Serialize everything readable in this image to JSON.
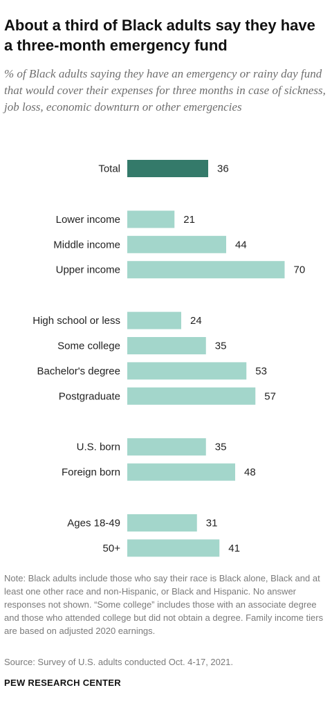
{
  "title": "About a third of Black adults say they have a three-month emergency fund",
  "subtitle": "% of Black adults saying they have an emergency or rainy day fund that would cover their expenses for three months in case of sickness, job loss, economic downturn or other emergencies",
  "note": "Note: Black adults include those who say their race is Black alone, Black and at least one other race and non-Hispanic, or Black and Hispanic. No answer responses not shown. “Some college” includes those with an associate degree and those who attended college but did not obtain a degree. Family income tiers are based on adjusted 2020 earnings.",
  "source": "Source: Survey of U.S. adults conducted Oct. 4-17, 2021.",
  "brand": "PEW RESEARCH CENTER",
  "colors": {
    "total": "#347a6a",
    "group": "#a3d6cb"
  },
  "chart_data": {
    "type": "bar",
    "orientation": "horizontal",
    "xlim": [
      0,
      100
    ],
    "groups": [
      {
        "items": [
          {
            "label": "Total",
            "value": 36,
            "highlight": true
          }
        ]
      },
      {
        "items": [
          {
            "label": "Lower income",
            "value": 21
          },
          {
            "label": "Middle income",
            "value": 44
          },
          {
            "label": "Upper income",
            "value": 70
          }
        ]
      },
      {
        "items": [
          {
            "label": "High school or less",
            "value": 24
          },
          {
            "label": "Some college",
            "value": 35
          },
          {
            "label": "Bachelor's degree",
            "value": 53
          },
          {
            "label": "Postgraduate",
            "value": 57
          }
        ]
      },
      {
        "items": [
          {
            "label": "U.S. born",
            "value": 35
          },
          {
            "label": "Foreign born",
            "value": 48
          }
        ]
      },
      {
        "items": [
          {
            "label": "Ages 18-49",
            "value": 31
          },
          {
            "label": "50+",
            "value": 41
          }
        ]
      }
    ]
  }
}
